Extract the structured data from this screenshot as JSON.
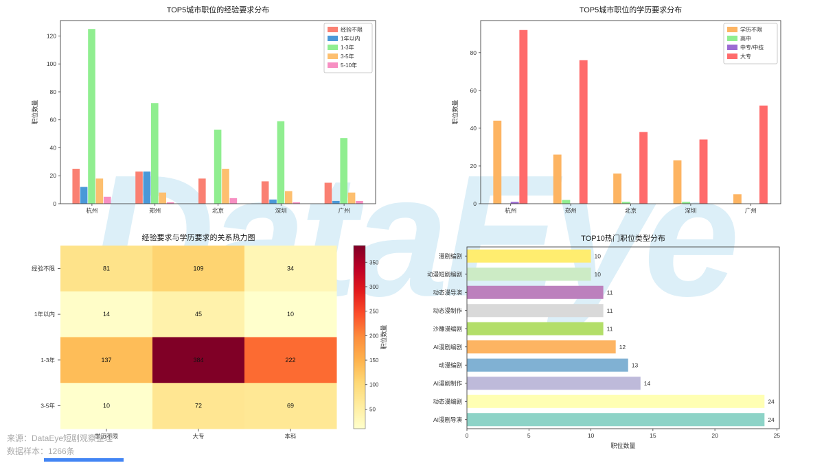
{
  "watermark": "DataEye",
  "footer": {
    "source": "来源：DataEye短剧观察整理",
    "sample": "数据样本：1266条"
  },
  "accent_colors": {
    "progress_bar": "#4285f4",
    "watermark_blue": "#dceff8"
  },
  "chart_data": [
    {
      "id": "exp-by-city",
      "type": "bar",
      "title": "TOP5城市职位的经验要求分布",
      "ylabel": "职位数量",
      "categories": [
        "杭州",
        "郑州",
        "北京",
        "深圳",
        "广州"
      ],
      "series": [
        {
          "name": "经验不限",
          "color": "#fa8072",
          "values": [
            25,
            23,
            18,
            16,
            15
          ]
        },
        {
          "name": "1年以内",
          "color": "#4a98d8",
          "values": [
            12,
            23,
            0,
            3,
            2
          ]
        },
        {
          "name": "1-3年",
          "color": "#90ee90",
          "values": [
            125,
            72,
            53,
            59,
            47
          ]
        },
        {
          "name": "3-5年",
          "color": "#fdbf6f",
          "values": [
            18,
            8,
            25,
            9,
            8
          ]
        },
        {
          "name": "5-10年",
          "color": "#f78fc2",
          "values": [
            5,
            1,
            4,
            1,
            2
          ]
        }
      ],
      "ylim": [
        0,
        131
      ],
      "yticks": [
        0,
        20,
        40,
        60,
        80,
        100,
        120
      ],
      "legend_position": "upper right",
      "grid": false
    },
    {
      "id": "edu-by-city",
      "type": "bar",
      "title": "TOP5城市职位的学历要求分布",
      "ylabel": "职位数量",
      "categories": [
        "杭州",
        "郑州",
        "北京",
        "深圳",
        "广州"
      ],
      "series": [
        {
          "name": "学历不限",
          "color": "#fdb462",
          "values": [
            44,
            26,
            16,
            23,
            5
          ]
        },
        {
          "name": "高中",
          "color": "#90ee90",
          "values": [
            0,
            2,
            1,
            1,
            0
          ]
        },
        {
          "name": "中专/中技",
          "color": "#9b6bd3",
          "values": [
            1,
            0,
            0,
            0,
            0
          ]
        },
        {
          "name": "大专",
          "color": "#ff6b6b",
          "values": [
            92,
            76,
            38,
            34,
            52
          ]
        }
      ],
      "ylim": [
        0,
        97
      ],
      "yticks": [
        0,
        20,
        40,
        60,
        80
      ],
      "legend_position": "upper right",
      "grid": false
    },
    {
      "id": "exp-edu-heatmap",
      "type": "heatmap",
      "title": "经验要求与学历要求的关系热力图",
      "rows": [
        "经验不限",
        "1年以内",
        "1-3年",
        "3-5年"
      ],
      "cols": [
        "学历不限",
        "大专",
        "本科"
      ],
      "values": [
        [
          81,
          109,
          34
        ],
        [
          14,
          45,
          10
        ],
        [
          137,
          384,
          222
        ],
        [
          10,
          72,
          69
        ]
      ],
      "vmin": 10,
      "vmax": 384,
      "colormap": "YlOrRd",
      "colorbar_label": "职位数量",
      "colorbar_ticks": [
        50,
        100,
        150,
        200,
        250,
        300,
        350
      ]
    },
    {
      "id": "top10-types",
      "type": "bar",
      "orientation": "horizontal",
      "title": "TOP10热门职位类型分布",
      "xlabel": "职位数量",
      "categories": [
        "漫剧编剧",
        "动漫短剧编剧",
        "动态漫导演",
        "动态漫制作",
        "沙雕漫编剧",
        "AI漫剧编剧",
        "动漫编剧",
        "AI漫剧制作",
        "动态漫编剧",
        "AI漫剧导演"
      ],
      "values": [
        10,
        10,
        11,
        11,
        11,
        12,
        13,
        14,
        24,
        24
      ],
      "colors": [
        "#ffed6f",
        "#ccebc5",
        "#bc80bd",
        "#d9d9d9",
        "#b3de69",
        "#fdb462",
        "#80b1d3",
        "#bebada",
        "#ffffb3",
        "#8dd3c7"
      ],
      "xlim": [
        0,
        25.2
      ],
      "xticks": [
        0,
        5,
        10,
        15,
        20,
        25
      ],
      "grid": false
    }
  ]
}
